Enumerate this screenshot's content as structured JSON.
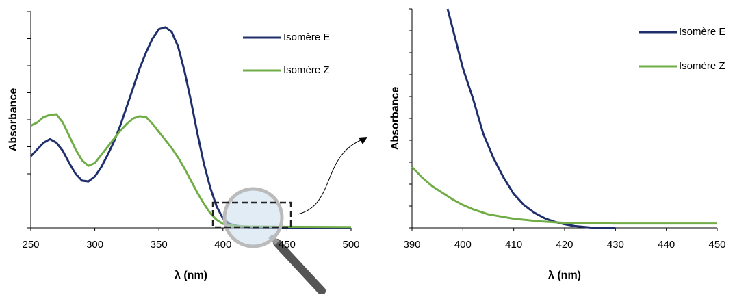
{
  "chart_data": [
    {
      "type": "line",
      "x_label": "λ (nm)",
      "y_label": "Absorbance",
      "xlim": [
        250,
        500
      ],
      "xticks": [
        250,
        300,
        350,
        400,
        450,
        500
      ],
      "ylim": [
        0,
        8
      ],
      "yticks": [
        0,
        1,
        2,
        3,
        4,
        5,
        6,
        7,
        8
      ],
      "series": [
        {
          "name": "Isomère E",
          "color": "#1f2f6b",
          "x": [
            250,
            255,
            260,
            265,
            270,
            275,
            280,
            285,
            290,
            295,
            300,
            305,
            310,
            315,
            320,
            325,
            330,
            335,
            340,
            345,
            350,
            355,
            360,
            365,
            370,
            375,
            380,
            385,
            390,
            395,
            400,
            405,
            410,
            415,
            420,
            430,
            450,
            500
          ],
          "values": [
            2.65,
            2.9,
            3.15,
            3.28,
            3.15,
            2.85,
            2.4,
            2.0,
            1.75,
            1.72,
            1.9,
            2.25,
            2.7,
            3.2,
            3.8,
            4.5,
            5.2,
            5.9,
            6.5,
            7.0,
            7.35,
            7.42,
            7.25,
            6.7,
            5.8,
            4.7,
            3.5,
            2.4,
            1.5,
            0.8,
            0.35,
            0.15,
            0.08,
            0.05,
            0.02,
            0,
            0,
            0
          ]
        },
        {
          "name": "Isomère Z",
          "color": "#70ad47",
          "x": [
            250,
            255,
            260,
            265,
            270,
            275,
            280,
            285,
            290,
            295,
            300,
            305,
            310,
            315,
            320,
            325,
            330,
            335,
            340,
            345,
            350,
            355,
            360,
            365,
            370,
            375,
            380,
            385,
            390,
            395,
            400,
            410,
            420,
            450,
            500
          ],
          "values": [
            3.78,
            3.9,
            4.1,
            4.18,
            4.2,
            3.9,
            3.4,
            2.9,
            2.5,
            2.3,
            2.4,
            2.7,
            3.0,
            3.3,
            3.6,
            3.85,
            4.05,
            4.13,
            4.1,
            3.85,
            3.55,
            3.25,
            2.95,
            2.6,
            2.2,
            1.75,
            1.3,
            0.9,
            0.55,
            0.3,
            0.15,
            0.07,
            0.05,
            0.04,
            0.03
          ]
        }
      ]
    },
    {
      "type": "line",
      "x_label": "λ (nm)",
      "y_label": "Absorbance",
      "xlim": [
        390,
        450
      ],
      "xticks": [
        390,
        400,
        410,
        420,
        430,
        440,
        450
      ],
      "ylim": [
        0,
        10
      ],
      "yticks": [
        0,
        1,
        2,
        3,
        4,
        5,
        6,
        7,
        8,
        9,
        10
      ],
      "series": [
        {
          "name": "Isomère E",
          "color": "#1f2f6b",
          "x": [
            397,
            398,
            400,
            402,
            404,
            406,
            408,
            410,
            412,
            414,
            416,
            418,
            420,
            422,
            425,
            428,
            430
          ],
          "values": [
            10,
            9.1,
            7.3,
            5.9,
            4.3,
            3.2,
            2.3,
            1.55,
            1.05,
            0.7,
            0.45,
            0.28,
            0.17,
            0.08,
            0.02,
            0,
            0
          ]
        },
        {
          "name": "Isomère Z",
          "color": "#70ad47",
          "x": [
            390,
            392,
            394,
            396,
            398,
            400,
            402,
            405,
            410,
            415,
            420,
            425,
            430,
            440,
            450
          ],
          "values": [
            2.78,
            2.3,
            1.9,
            1.6,
            1.3,
            1.05,
            0.85,
            0.62,
            0.42,
            0.3,
            0.23,
            0.21,
            0.2,
            0.2,
            0.2
          ]
        }
      ]
    }
  ]
}
